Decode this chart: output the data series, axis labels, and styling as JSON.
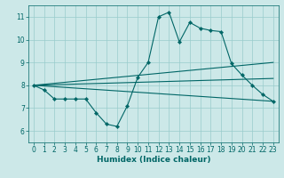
{
  "title": "",
  "xlabel": "Humidex (Indice chaleur)",
  "bg_color": "#cce8e8",
  "grid_color": "#99cccc",
  "line_color": "#006666",
  "xlim": [
    -0.5,
    23.5
  ],
  "ylim": [
    5.5,
    11.5
  ],
  "xticks": [
    0,
    1,
    2,
    3,
    4,
    5,
    6,
    7,
    8,
    9,
    10,
    11,
    12,
    13,
    14,
    15,
    16,
    17,
    18,
    19,
    20,
    21,
    22,
    23
  ],
  "yticks": [
    6,
    7,
    8,
    9,
    10,
    11
  ],
  "main_x": [
    0,
    1,
    2,
    3,
    4,
    5,
    6,
    7,
    8,
    9,
    10,
    11,
    12,
    13,
    14,
    15,
    16,
    17,
    18,
    19,
    20,
    21,
    22,
    23
  ],
  "main_y": [
    8.0,
    7.8,
    7.4,
    7.4,
    7.4,
    7.4,
    6.8,
    6.3,
    6.2,
    7.1,
    8.35,
    9.0,
    11.0,
    11.2,
    9.9,
    10.75,
    10.5,
    10.4,
    10.35,
    8.95,
    8.45,
    8.0,
    7.6,
    7.3
  ],
  "line1_x": [
    0,
    23
  ],
  "line1_y": [
    8.0,
    7.3
  ],
  "line2_x": [
    0,
    23
  ],
  "line2_y": [
    8.0,
    8.3
  ],
  "line3_x": [
    0,
    23
  ],
  "line3_y": [
    8.0,
    9.0
  ]
}
